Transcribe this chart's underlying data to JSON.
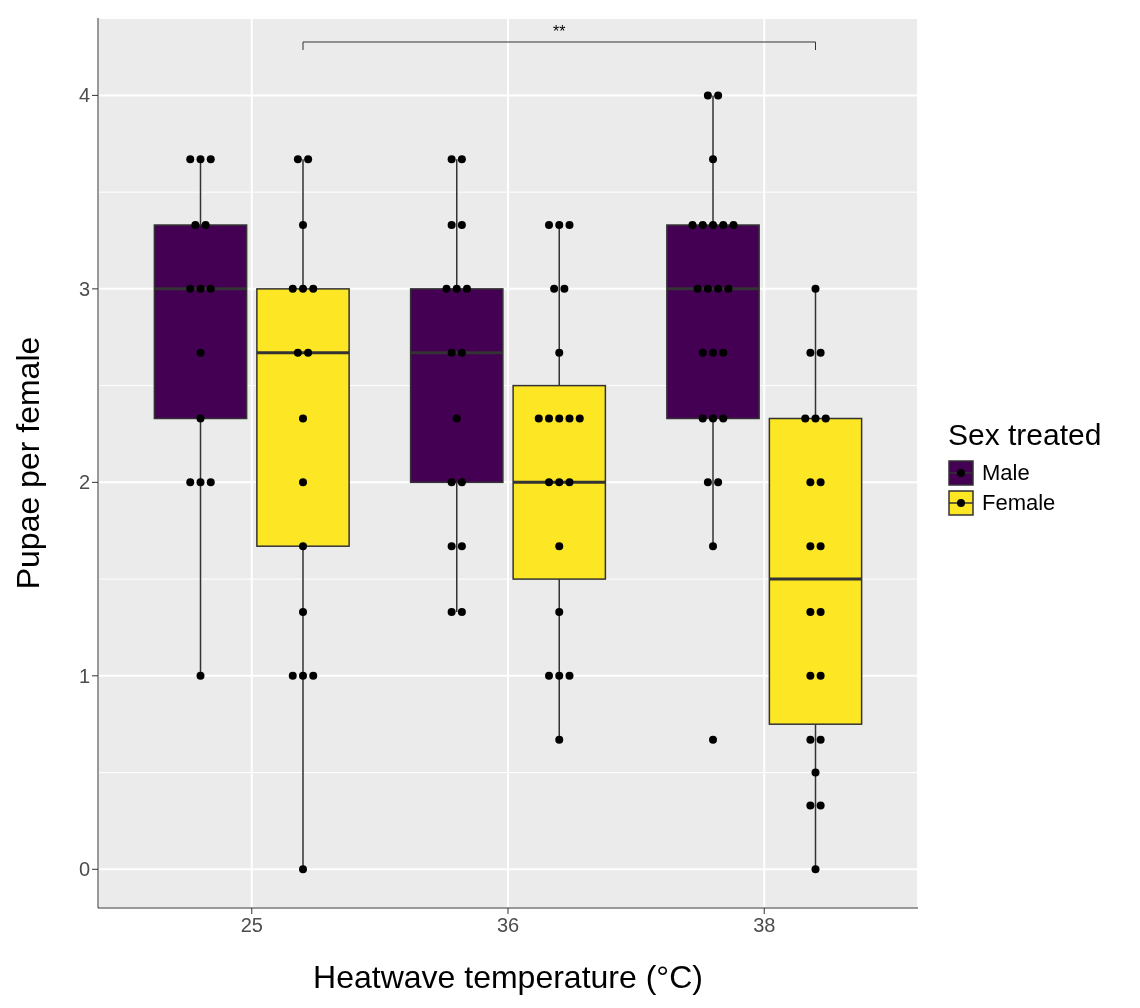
{
  "chart_data": {
    "type": "box",
    "xlabel": "Heatwave temperature (°C)",
    "ylabel": "Pupae per female",
    "legend_title": "Sex treated",
    "legend": "right",
    "grid": true,
    "categories": [
      "25",
      "36",
      "38"
    ],
    "ylim": [
      -0.2,
      4.4
    ],
    "yticks": [
      0,
      1,
      2,
      3,
      4
    ],
    "annotations": [
      "**"
    ],
    "series": [
      {
        "name": "Male",
        "color": "#440154",
        "boxes": [
          {
            "low": 1,
            "q1": 2.33,
            "median": 3,
            "q3": 3.33,
            "high": 3.67
          },
          {
            "low": 1.33,
            "q1": 2,
            "median": 2.67,
            "q3": 3,
            "high": 3.67
          },
          {
            "low": 1.67,
            "q1": 2.33,
            "median": 3,
            "q3": 3.33,
            "high": 4
          }
        ]
      },
      {
        "name": "Female",
        "color": "#fde725",
        "boxes": [
          {
            "low": 0,
            "q1": 1.67,
            "median": 2.67,
            "q3": 3,
            "high": 3.67
          },
          {
            "low": 0.67,
            "q1": 1.5,
            "median": 2,
            "q3": 2.5,
            "high": 3.33
          },
          {
            "low": 0,
            "q1": 0.75,
            "median": 1.5,
            "q3": 2.33,
            "high": 3
          }
        ]
      },
      {
        "type": "scatter",
        "color": "#000000",
        "x": [
          "25",
          "25",
          "25",
          "25",
          "25",
          "25",
          "25",
          "25",
          "25",
          "25",
          "25",
          "25",
          "25",
          "25",
          "36",
          "36",
          "36",
          "36",
          "36",
          "36",
          "36",
          "36",
          "36",
          "36",
          "36",
          "36",
          "36",
          "36",
          "36",
          "36",
          "38",
          "38",
          "38",
          "38",
          "38",
          "38",
          "38",
          "38",
          "38",
          "38",
          "38",
          "38",
          "38",
          "38",
          "38",
          "38",
          "38",
          "38",
          "38",
          "38",
          "38",
          "38"
        ],
        "values": [
          3.67,
          3.67,
          3.67,
          3.33,
          3.33,
          3,
          3,
          3,
          2.67,
          2.33,
          2,
          2,
          2,
          1,
          3.67,
          3.67,
          3.33,
          3.33,
          3,
          3,
          3,
          2.67,
          2.67,
          2.33,
          2,
          2,
          1.67,
          1.67,
          1.33,
          1.33,
          4,
          4,
          3.67,
          3.33,
          3.33,
          3.33,
          3.33,
          3.33,
          3,
          3,
          3,
          3,
          2.67,
          2.67,
          2.67,
          2.33,
          2.33,
          2.33,
          2,
          2,
          1.67,
          0.67
        ]
      },
      {
        "type": "scatter",
        "color": "#000000",
        "x": [
          "25",
          "25",
          "25",
          "25",
          "25",
          "25",
          "25",
          "25",
          "25",
          "25",
          "25",
          "25",
          "25",
          "25",
          "25",
          "25",
          "36",
          "36",
          "36",
          "36",
          "36",
          "36",
          "36",
          "36",
          "36",
          "36",
          "36",
          "36",
          "36",
          "36",
          "36",
          "36",
          "36",
          "36",
          "36",
          "36",
          "38",
          "38",
          "38",
          "38",
          "38",
          "38",
          "38",
          "38",
          "38",
          "38",
          "38",
          "38",
          "38",
          "38",
          "38",
          "38",
          "38",
          "38",
          "38",
          "38"
        ],
        "values": [
          3.67,
          3.67,
          3.33,
          3,
          3,
          3,
          2.67,
          2.67,
          2.33,
          2,
          1.67,
          1.33,
          1,
          1,
          1,
          0,
          3.33,
          3.33,
          3.33,
          3,
          3,
          2.67,
          2.33,
          2.33,
          2.33,
          2.33,
          2.33,
          2,
          2,
          2,
          1.67,
          1.33,
          1,
          1,
          1,
          0.67,
          3,
          2.67,
          2.67,
          2.33,
          2.33,
          2.33,
          2,
          2,
          1.67,
          1.67,
          1.33,
          1.33,
          1,
          1,
          0.67,
          0.67,
          0.5,
          0.33,
          0.33,
          0
        ]
      }
    ]
  }
}
